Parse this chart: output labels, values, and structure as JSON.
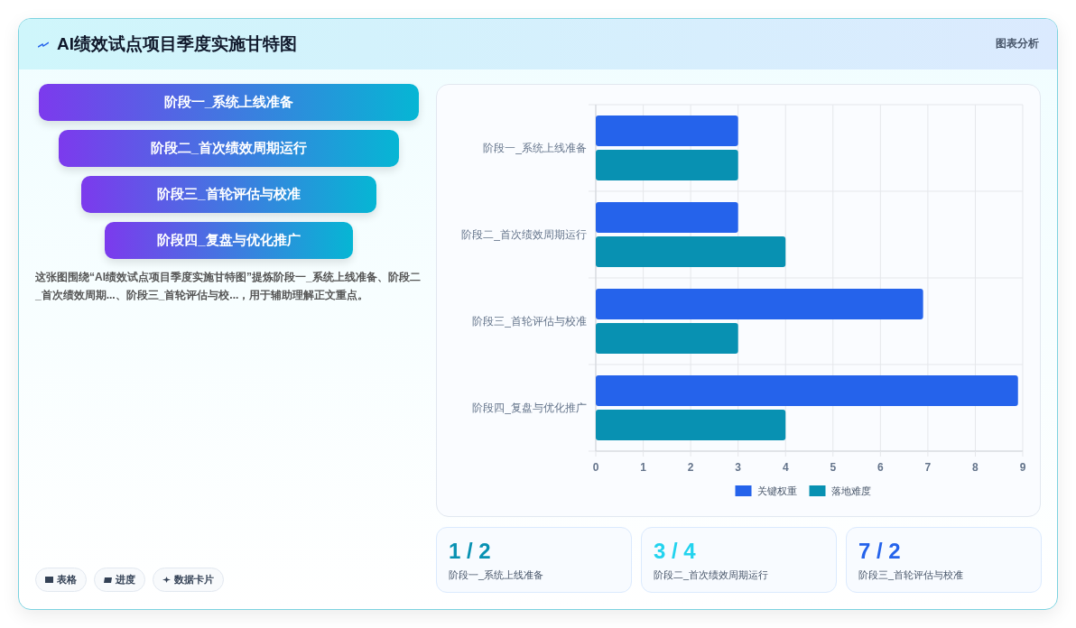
{
  "chart_data": {
    "type": "bar",
    "orientation": "horizontal",
    "title": "AI绩效试点项目季度实施甘特图",
    "categories": [
      "阶段一_系统上线准备",
      "阶段二_首次绩效周期运行",
      "阶段三_首轮评估与校准",
      "阶段四_复盘与优化推广"
    ],
    "series": [
      {
        "name": "关键权重",
        "color": "#2563eb",
        "values": [
          3,
          3,
          6.9,
          8.9
        ]
      },
      {
        "name": "落地难度",
        "color": "#0891b2",
        "values": [
          3,
          4,
          3,
          4
        ]
      }
    ],
    "xlim": [
      0,
      9
    ],
    "xticks": [
      0,
      1,
      2,
      3,
      4,
      5,
      6,
      7,
      8,
      9
    ],
    "grid": true,
    "legend": "bottom",
    "annotations": [
      "图表分析",
      "这张图围绕“AI绩效试点项目季度实施甘特图”提炼阶段一_系统上线准备、阶段二_首次绩效周期...、阶段三_首轮评估与校...，用于辅助理解正文重点。",
      "1 / 2",
      "3 / 4",
      "7 / 2",
      "表格",
      "进度",
      "数据卡片"
    ]
  }
}
